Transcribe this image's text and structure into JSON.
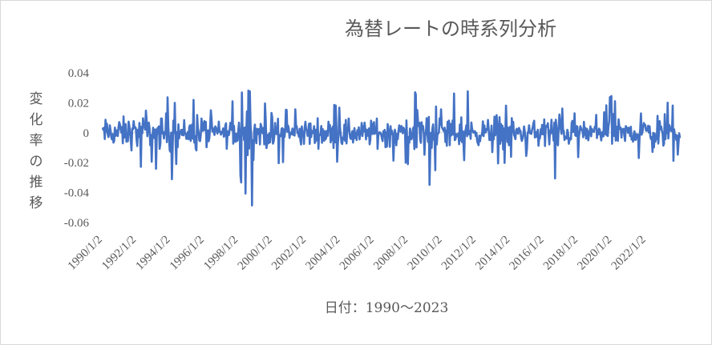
{
  "chart_data": {
    "type": "line",
    "title": "為替レートの時系列分析",
    "xlabel": "日付：1990～2023",
    "ylabel": "変化率の推移",
    "ylim": [
      -0.06,
      0.04
    ],
    "yticks": [
      "0.04",
      "0.02",
      "0",
      "-0.02",
      "-0.04",
      "-0.06"
    ],
    "xticks": [
      "1990/1/2",
      "1992/1/2",
      "1994/1/2",
      "1996/1/2",
      "1998/1/2",
      "2000/1/2",
      "2002/1/2",
      "2004/1/2",
      "2006/1/2",
      "2008/1/2",
      "2010/1/2",
      "2012/1/2",
      "2014/1/2",
      "2016/1/2",
      "2018/1/2",
      "2020/1/2",
      "2022/1/2"
    ],
    "x_range": [
      "1990/1/2",
      "2023/12/29"
    ],
    "grid": false,
    "series_color": "#4472c4",
    "series": [
      {
        "x": [
          "1990/1/2",
          "1990/6/1",
          "1991/1/2",
          "1991/6/1",
          "1992/1/2",
          "1992/6/1",
          "1993/1/2",
          "1993/6/1",
          "1994/1/2",
          "1994/6/1",
          "1995/1/2",
          "1995/6/1",
          "1996/1/2",
          "1996/6/1",
          "1997/1/2",
          "1997/6/1",
          "1998/1/2",
          "1998/6/1",
          "1998/10/1",
          "1999/1/2",
          "1999/6/1",
          "2000/1/2",
          "2000/6/1",
          "2001/1/2",
          "2001/6/1",
          "2002/1/2",
          "2002/6/1",
          "2003/1/2",
          "2003/6/1",
          "2004/1/2",
          "2004/6/1",
          "2005/1/2",
          "2005/6/1",
          "2006/1/2",
          "2006/6/1",
          "2007/1/2",
          "2007/6/1",
          "2008/1/2",
          "2008/6/1",
          "2008/10/1",
          "2009/1/2",
          "2009/6/1",
          "2010/1/2",
          "2010/6/1",
          "2011/1/2",
          "2011/6/1",
          "2012/1/2",
          "2012/6/1",
          "2013/1/2",
          "2013/6/1",
          "2014/1/2",
          "2014/6/1",
          "2015/1/2",
          "2015/6/1",
          "2016/1/2",
          "2016/6/1",
          "2017/1/2",
          "2017/6/1",
          "2018/1/2",
          "2018/6/1",
          "2019/1/2",
          "2019/6/1",
          "2020/1/2",
          "2020/6/1",
          "2021/1/2",
          "2021/6/1",
          "2022/1/2",
          "2022/6/1",
          "2023/1/2",
          "2023/6/1",
          "2023/12/29"
        ],
        "high": [
          0.017,
          0.016,
          0.02,
          0.016,
          0.015,
          0.016,
          0.014,
          0.02,
          0.026,
          0.02,
          0.019,
          0.025,
          0.033,
          0.015,
          0.013,
          0.02,
          0.027,
          0.033,
          0.032,
          0.03,
          0.02,
          0.021,
          0.017,
          0.016,
          0.016,
          0.018,
          0.017,
          0.017,
          0.02,
          0.018,
          0.025,
          0.022,
          0.016,
          0.016,
          0.013,
          0.018,
          0.014,
          0.016,
          0.028,
          0.025,
          0.023,
          0.019,
          0.018,
          0.031,
          0.022,
          0.031,
          0.018,
          0.016,
          0.034,
          0.028,
          0.016,
          0.012,
          0.029,
          0.014,
          0.02,
          0.022,
          0.017,
          0.014,
          0.013,
          0.014,
          0.013,
          0.012,
          0.029,
          0.014,
          0.011,
          0.012,
          0.016,
          0.02,
          0.019,
          0.021,
          0.012
        ],
        "low": [
          -0.018,
          -0.028,
          -0.02,
          -0.03,
          -0.033,
          -0.02,
          -0.022,
          -0.028,
          -0.035,
          -0.022,
          -0.02,
          -0.028,
          -0.03,
          -0.018,
          -0.02,
          -0.022,
          -0.027,
          -0.045,
          -0.056,
          -0.028,
          -0.026,
          -0.028,
          -0.02,
          -0.022,
          -0.018,
          -0.025,
          -0.022,
          -0.018,
          -0.016,
          -0.022,
          -0.02,
          -0.018,
          -0.015,
          -0.028,
          -0.027,
          -0.02,
          -0.018,
          -0.022,
          -0.045,
          -0.052,
          -0.045,
          -0.028,
          -0.025,
          -0.022,
          -0.02,
          -0.02,
          -0.018,
          -0.015,
          -0.022,
          -0.022,
          -0.018,
          -0.02,
          -0.018,
          -0.02,
          -0.03,
          -0.037,
          -0.028,
          -0.02,
          -0.018,
          -0.016,
          -0.018,
          -0.028,
          -0.03,
          -0.02,
          -0.016,
          -0.015,
          -0.025,
          -0.034,
          -0.038,
          -0.025,
          -0.015
        ]
      }
    ]
  }
}
